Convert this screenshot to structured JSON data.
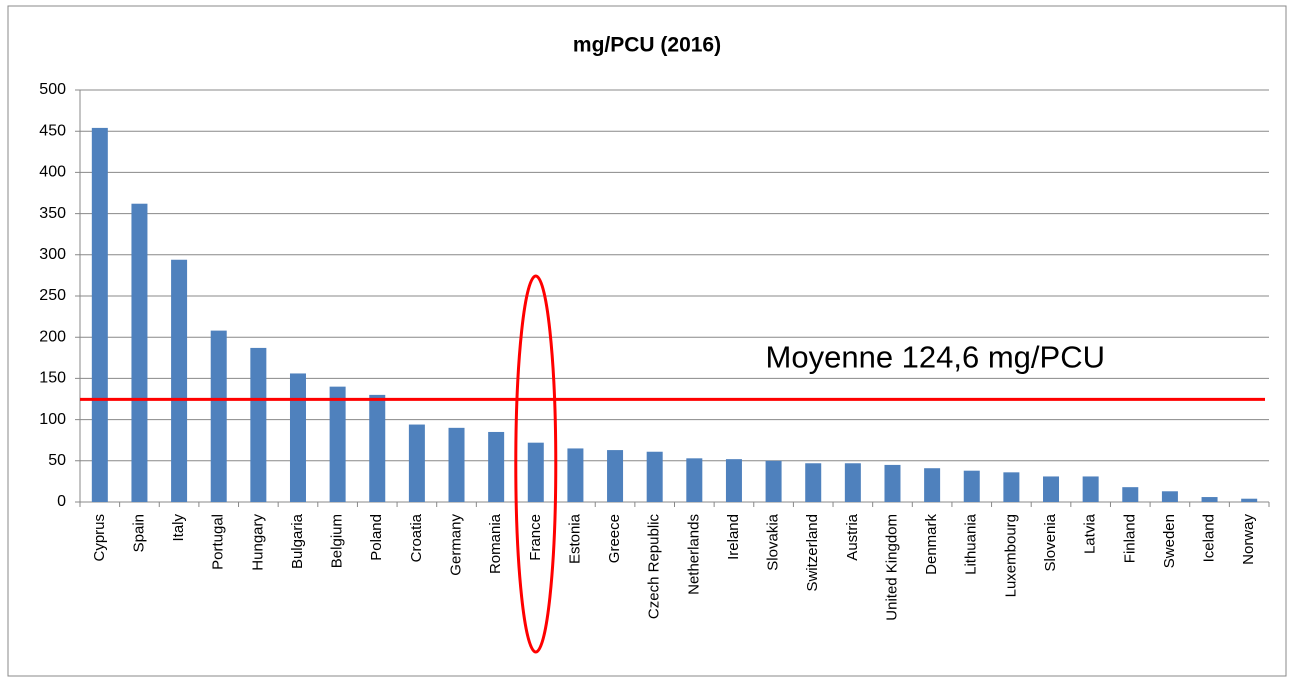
{
  "chart_data": {
    "type": "bar",
    "title": "mg/PCU (2016)",
    "categories": [
      "Cyprus",
      "Spain",
      "Italy",
      "Portugal",
      "Hungary",
      "Bulgaria",
      "Belgium",
      "Poland",
      "Croatia",
      "Germany",
      "Romania",
      "France",
      "Estonia",
      "Greece",
      "Czech Republic",
      "Netherlands",
      "Ireland",
      "Slovakia",
      "Switzerland",
      "Austria",
      "United Kingdom",
      "Denmark",
      "Lithuania",
      "Luxembourg",
      "Slovenia",
      "Latvia",
      "Finland",
      "Sweden",
      "Iceland",
      "Norway"
    ],
    "values": [
      454,
      362,
      294,
      208,
      187,
      156,
      140,
      130,
      94,
      90,
      85,
      72,
      65,
      63,
      61,
      53,
      52,
      50,
      47,
      47,
      45,
      41,
      38,
      36,
      31,
      31,
      18,
      13,
      6,
      4
    ],
    "color": "#4f81bd",
    "ylim": [
      0,
      500
    ],
    "yticks": [
      0,
      50,
      100,
      150,
      200,
      250,
      300,
      350,
      400,
      450,
      500
    ],
    "grid": true,
    "reference_line": {
      "value": 124.6,
      "label": "Moyenne 124,6 mg/PCU",
      "color": "#ff0000"
    },
    "highlight": "France"
  }
}
